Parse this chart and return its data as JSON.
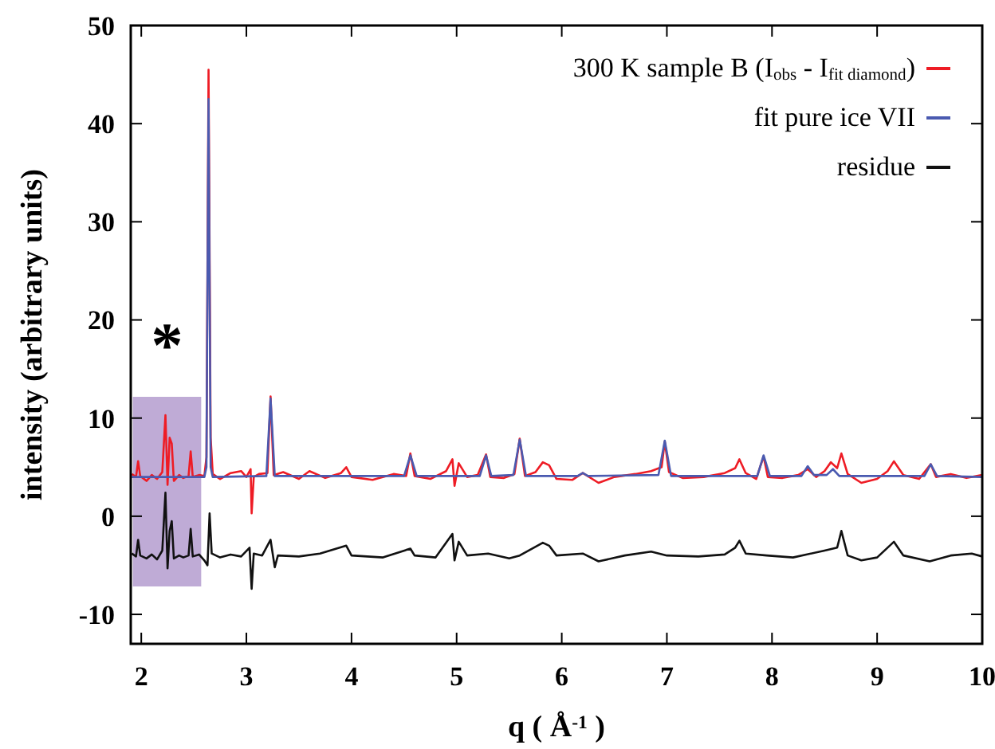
{
  "chart_data": {
    "type": "line",
    "xlabel": "q ( Å$^{-1}$ )",
    "ylabel": "intensity (arbitrary units)",
    "xlim": [
      1.9,
      10
    ],
    "xticks": [
      2,
      3,
      4,
      5,
      6,
      7,
      8,
      9,
      10
    ],
    "ylim": [
      -13,
      50
    ],
    "yticks": [
      -10,
      0,
      10,
      20,
      30,
      40,
      50
    ],
    "grid": false,
    "legend": "top right",
    "line_style": "solid",
    "annotations": [
      "*"
    ],
    "bands": [
      {
        "axis": "x",
        "from": 1.92,
        "to": 2.57,
        "color": "#b49ccf"
      }
    ],
    "series": [
      {
        "name": "300 K sample B (I$_{obs}$ - I$_{fit diamond}$)",
        "color": "#ee1c25",
        "x": [
          1.91,
          1.95,
          1.97,
          1.99,
          2.05,
          2.1,
          2.15,
          2.2,
          2.23,
          2.25,
          2.27,
          2.29,
          2.31,
          2.36,
          2.4,
          2.45,
          2.47,
          2.49,
          2.55,
          2.6,
          2.62,
          2.64,
          2.66,
          2.68,
          2.75,
          2.85,
          2.95,
          3.0,
          3.04,
          3.05,
          3.07,
          3.12,
          3.2,
          3.23,
          3.26,
          3.35,
          3.5,
          3.6,
          3.75,
          3.9,
          3.95,
          4.0,
          4.2,
          4.4,
          4.52,
          4.56,
          4.6,
          4.75,
          4.9,
          4.96,
          4.98,
          5.02,
          5.1,
          5.2,
          5.28,
          5.32,
          5.45,
          5.55,
          5.6,
          5.65,
          5.75,
          5.82,
          5.88,
          5.95,
          6.1,
          6.2,
          6.35,
          6.5,
          6.7,
          6.85,
          6.95,
          6.98,
          7.02,
          7.15,
          7.35,
          7.55,
          7.65,
          7.69,
          7.75,
          7.85,
          7.92,
          7.96,
          8.1,
          8.25,
          8.34,
          8.42,
          8.5,
          8.56,
          8.62,
          8.66,
          8.72,
          8.85,
          9.0,
          9.1,
          9.16,
          9.25,
          9.4,
          9.51,
          9.56,
          9.7,
          9.85,
          10.0
        ],
        "values": [
          4.3,
          4.0,
          5.6,
          4.1,
          3.6,
          4.2,
          3.8,
          4.5,
          10.3,
          3.2,
          8.0,
          7.4,
          3.6,
          4.2,
          3.9,
          4.1,
          6.6,
          4.0,
          4.2,
          4.1,
          6,
          45.5,
          8,
          4.3,
          3.8,
          4.4,
          4.6,
          4.0,
          4.8,
          0.3,
          4.0,
          4.3,
          4.4,
          12.2,
          4.2,
          4.5,
          3.8,
          4.6,
          3.9,
          4.4,
          5.0,
          4.0,
          3.7,
          4.3,
          4.1,
          6.4,
          4.1,
          3.8,
          4.6,
          5.8,
          3.1,
          5.4,
          4.0,
          4.2,
          6.3,
          4.0,
          3.9,
          4.3,
          7.9,
          4.1,
          4.5,
          5.5,
          5.2,
          3.8,
          3.7,
          4.4,
          3.4,
          4.0,
          4.3,
          4.6,
          5.0,
          7.6,
          4.5,
          3.9,
          4.0,
          4.4,
          4.9,
          5.8,
          4.4,
          3.8,
          6.1,
          4.0,
          3.9,
          4.2,
          4.8,
          4.0,
          4.6,
          5.5,
          4.9,
          6.4,
          4.3,
          3.4,
          3.8,
          4.6,
          5.6,
          4.2,
          3.8,
          5.3,
          4.0,
          4.3,
          3.9,
          4.2
        ]
      },
      {
        "name": "fit pure ice VII",
        "color": "#4a5ab0",
        "x": [
          1.91,
          2.6,
          2.62,
          2.64,
          2.66,
          2.68,
          3.19,
          3.23,
          3.27,
          4.5,
          4.56,
          4.62,
          5.22,
          5.28,
          5.33,
          5.54,
          5.6,
          5.66,
          6.15,
          6.2,
          6.25,
          6.92,
          6.98,
          7.04,
          7.86,
          7.92,
          7.98,
          8.28,
          8.34,
          8.4,
          8.52,
          8.58,
          8.64,
          9.45,
          9.51,
          9.57,
          10.0
        ],
        "values": [
          4.0,
          4.0,
          5,
          42.5,
          5,
          4.0,
          4.1,
          12,
          4.1,
          4.1,
          6.2,
          4.1,
          4.1,
          6.2,
          4.1,
          4.2,
          7.8,
          4.1,
          4.1,
          4.4,
          4.1,
          4.2,
          7.7,
          4.1,
          4.1,
          6.2,
          4.1,
          4.1,
          5.1,
          4.2,
          4.2,
          4.8,
          4.1,
          4.1,
          5.3,
          4.1,
          4.0
        ]
      },
      {
        "name": "residue",
        "color": "#111111",
        "x": [
          1.91,
          1.95,
          1.97,
          1.99,
          2.05,
          2.1,
          2.15,
          2.2,
          2.23,
          2.25,
          2.27,
          2.29,
          2.31,
          2.36,
          2.4,
          2.45,
          2.47,
          2.49,
          2.55,
          2.6,
          2.63,
          2.65,
          2.67,
          2.75,
          2.85,
          2.95,
          3.03,
          3.05,
          3.07,
          3.15,
          3.23,
          3.27,
          3.3,
          3.5,
          3.7,
          3.95,
          4.0,
          4.3,
          4.56,
          4.6,
          4.8,
          4.96,
          4.98,
          5.02,
          5.1,
          5.3,
          5.5,
          5.6,
          5.82,
          5.88,
          5.95,
          6.2,
          6.35,
          6.6,
          6.85,
          7.0,
          7.3,
          7.55,
          7.65,
          7.69,
          7.75,
          7.95,
          8.2,
          8.5,
          8.62,
          8.66,
          8.72,
          8.85,
          9.0,
          9.16,
          9.25,
          9.5,
          9.7,
          9.9,
          10.0
        ],
        "values": [
          -3.8,
          -4.1,
          -2.4,
          -4.0,
          -4.3,
          -3.9,
          -4.4,
          -3.5,
          2.4,
          -5.3,
          -1.5,
          -0.5,
          -4.3,
          -4.0,
          -4.2,
          -4.0,
          -1.3,
          -4.1,
          -3.9,
          -4.5,
          -5,
          0.3,
          -3.8,
          -4.2,
          -3.9,
          -4.1,
          -3.2,
          -7.4,
          -3.8,
          -4.0,
          -2.4,
          -5.2,
          -4.0,
          -4.1,
          -3.8,
          -3.0,
          -4.0,
          -4.2,
          -3.3,
          -4.0,
          -4.2,
          -1.8,
          -4.5,
          -2.6,
          -4.0,
          -3.8,
          -4.3,
          -4.0,
          -2.7,
          -3.0,
          -4.0,
          -3.8,
          -4.6,
          -4.0,
          -3.6,
          -4.0,
          -4.1,
          -3.9,
          -3.2,
          -2.5,
          -3.8,
          -4.0,
          -4.2,
          -3.5,
          -3.2,
          -1.5,
          -4.0,
          -4.5,
          -4.2,
          -2.6,
          -4.0,
          -4.6,
          -4.0,
          -3.8,
          -4.1
        ]
      }
    ]
  }
}
